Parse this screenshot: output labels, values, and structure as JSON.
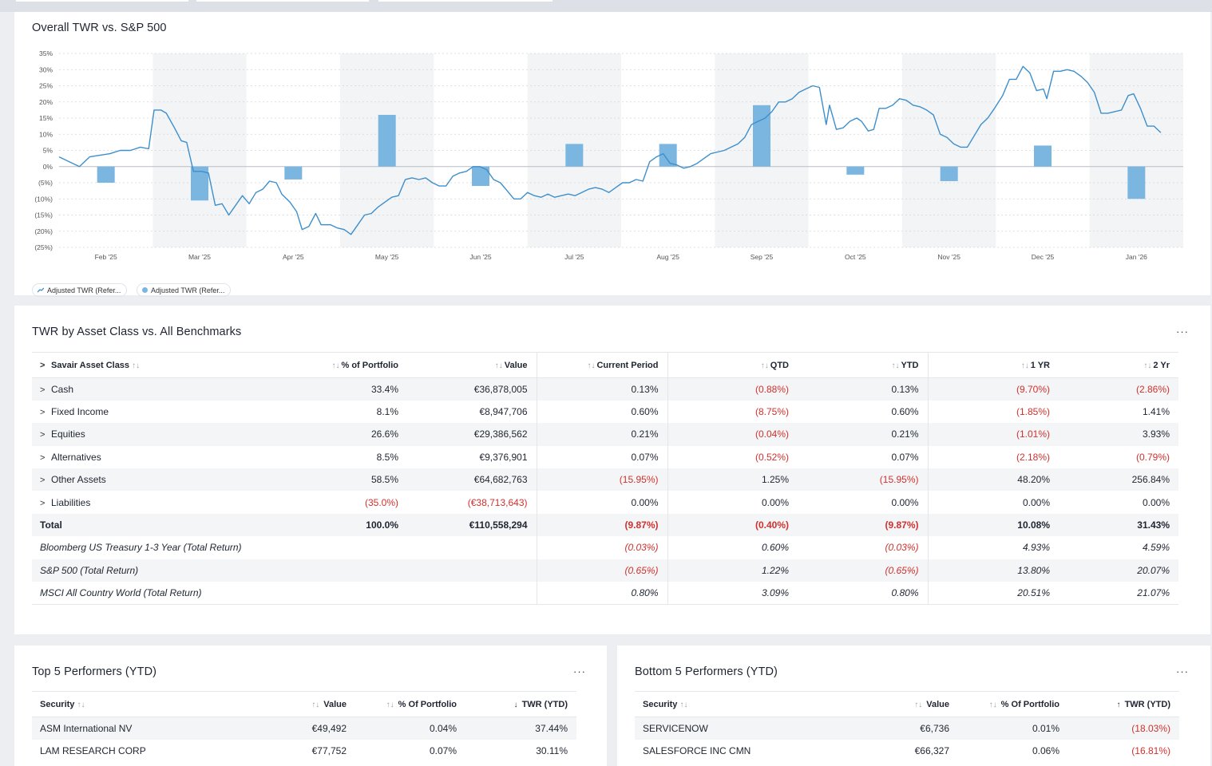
{
  "chart_card": {
    "title": "Overall TWR vs. S&P 500",
    "legend": [
      {
        "label": "Adjusted TWR (Refer...",
        "kind": "line"
      },
      {
        "label": "Adjusted TWR (Refer...",
        "kind": "bar"
      }
    ]
  },
  "chart_data": {
    "type": "line+bar",
    "title": "Overall TWR vs. S&P 500",
    "ylim": [
      -25,
      35
    ],
    "y_ticks": [
      "35%",
      "30%",
      "25%",
      "20%",
      "15%",
      "10%",
      "5%",
      "0%",
      "(5%)",
      "(10%)",
      "(15%)",
      "(20%)",
      "(25%)"
    ],
    "x_labels": [
      "Feb '25",
      "Mar '25",
      "Apr '25",
      "May '25",
      "Jun '25",
      "Jul '25",
      "Aug '25",
      "Sep '25",
      "Oct '25",
      "Nov '25",
      "Dec '25",
      "Jan '26"
    ],
    "bar_series": {
      "name": "Adjusted TWR (Refer...)",
      "color": "#7ab6e0",
      "values": [
        -5,
        -10.5,
        -4,
        16,
        -6,
        7,
        7,
        19,
        -2.5,
        -4.5,
        6.5,
        -10
      ]
    },
    "line_series": {
      "name": "Adjusted TWR (Refer...)",
      "color": "#3d8fcb",
      "points": [
        [
          0.0,
          3
        ],
        [
          0.15,
          1.5
        ],
        [
          0.3,
          0
        ],
        [
          0.45,
          3
        ],
        [
          0.6,
          3.5
        ],
        [
          0.75,
          4
        ],
        [
          0.9,
          5
        ],
        [
          1.05,
          5
        ],
        [
          1.2,
          6
        ],
        [
          1.32,
          5.5
        ],
        [
          1.4,
          17.5
        ],
        [
          1.5,
          17.5
        ],
        [
          1.58,
          16.5
        ],
        [
          1.7,
          12
        ],
        [
          1.8,
          8
        ],
        [
          1.88,
          7.5
        ],
        [
          1.98,
          -1.5
        ],
        [
          2.1,
          -1.5
        ],
        [
          2.2,
          -2
        ],
        [
          2.3,
          -12
        ],
        [
          2.4,
          -11.5
        ],
        [
          2.5,
          -15
        ],
        [
          2.6,
          -12
        ],
        [
          2.7,
          -9
        ],
        [
          2.8,
          -11.5
        ],
        [
          2.9,
          -8
        ],
        [
          3.0,
          -7
        ],
        [
          3.1,
          -4.5
        ],
        [
          3.2,
          -5
        ],
        [
          3.28,
          -8.5
        ],
        [
          3.4,
          -11
        ],
        [
          3.5,
          -14
        ],
        [
          3.58,
          -19.5
        ],
        [
          3.68,
          -18.5
        ],
        [
          3.78,
          -14.5
        ],
        [
          3.86,
          -18
        ],
        [
          4.0,
          -18
        ],
        [
          4.1,
          -19
        ],
        [
          4.2,
          -19.5
        ],
        [
          4.3,
          -21
        ],
        [
          4.4,
          -18
        ],
        [
          4.5,
          -15
        ],
        [
          4.6,
          -14.5
        ],
        [
          4.7,
          -12.5
        ],
        [
          4.8,
          -11
        ],
        [
          4.9,
          -9.5
        ],
        [
          5.0,
          -9
        ],
        [
          5.1,
          -4
        ],
        [
          5.2,
          -3.5
        ],
        [
          5.3,
          -4
        ],
        [
          5.4,
          -3.5
        ],
        [
          5.5,
          -5
        ],
        [
          5.6,
          -6
        ],
        [
          5.7,
          -6
        ],
        [
          5.8,
          -3
        ],
        [
          5.9,
          -2
        ],
        [
          6.0,
          -1.5
        ],
        [
          6.1,
          0
        ],
        [
          6.2,
          0
        ],
        [
          6.3,
          -1
        ],
        [
          6.4,
          -4
        ],
        [
          6.5,
          -5
        ],
        [
          6.6,
          -7.5
        ],
        [
          6.7,
          -10
        ],
        [
          6.8,
          -10
        ],
        [
          6.9,
          -8
        ],
        [
          7.0,
          -9
        ],
        [
          7.1,
          -9.5
        ],
        [
          7.2,
          -8.5
        ],
        [
          7.3,
          -9.5
        ],
        [
          7.4,
          -9
        ],
        [
          7.5,
          -8.5
        ],
        [
          7.6,
          -9
        ],
        [
          7.7,
          -8
        ],
        [
          7.8,
          -7
        ],
        [
          7.9,
          -6.5
        ],
        [
          8.0,
          -7
        ],
        [
          8.1,
          -8
        ],
        [
          8.2,
          -6.5
        ],
        [
          8.3,
          -5
        ],
        [
          8.4,
          -5
        ],
        [
          8.5,
          -4
        ],
        [
          8.6,
          -4.5
        ],
        [
          8.7,
          1.5
        ],
        [
          8.8,
          3
        ],
        [
          8.9,
          4
        ],
        [
          9.0,
          1
        ],
        [
          9.1,
          0.5
        ],
        [
          9.2,
          -0.5
        ],
        [
          9.3,
          0
        ],
        [
          9.4,
          1
        ],
        [
          9.5,
          2.5
        ],
        [
          9.6,
          4
        ],
        [
          9.7,
          4.5
        ],
        [
          9.8,
          5
        ],
        [
          9.9,
          6
        ],
        [
          10.0,
          7
        ],
        [
          10.1,
          9
        ],
        [
          10.2,
          13
        ],
        [
          10.3,
          14
        ],
        [
          10.4,
          15
        ],
        [
          10.5,
          17
        ],
        [
          10.6,
          20
        ],
        [
          10.7,
          20
        ],
        [
          10.8,
          21
        ],
        [
          10.9,
          23
        ],
        [
          11.0,
          24
        ],
        [
          11.1,
          25
        ],
        [
          11.2,
          24.5
        ],
        [
          11.3,
          13
        ],
        [
          11.35,
          19
        ],
        [
          11.45,
          11.5
        ],
        [
          11.55,
          12
        ],
        [
          11.65,
          14
        ],
        [
          11.75,
          15
        ],
        [
          11.82,
          14
        ],
        [
          11.92,
          11
        ],
        [
          12.0,
          11.5
        ],
        [
          12.08,
          18
        ],
        [
          12.18,
          18
        ],
        [
          12.28,
          19
        ],
        [
          12.38,
          21
        ],
        [
          12.48,
          20.5
        ],
        [
          12.58,
          19
        ],
        [
          12.68,
          18.5
        ],
        [
          12.78,
          17.5
        ],
        [
          12.88,
          16
        ],
        [
          12.98,
          10
        ],
        [
          13.08,
          9
        ],
        [
          13.18,
          7
        ],
        [
          13.28,
          6
        ],
        [
          13.38,
          6
        ],
        [
          13.48,
          9.5
        ],
        [
          13.58,
          13
        ],
        [
          13.68,
          15
        ],
        [
          13.78,
          18
        ],
        [
          13.9,
          22
        ],
        [
          14.0,
          27
        ],
        [
          14.1,
          27
        ],
        [
          14.2,
          31
        ],
        [
          14.3,
          29
        ],
        [
          14.4,
          23.5
        ],
        [
          14.5,
          24
        ],
        [
          14.55,
          21
        ],
        [
          14.65,
          29.5
        ],
        [
          14.75,
          29.5
        ],
        [
          14.85,
          30
        ],
        [
          14.95,
          29.5
        ],
        [
          15.05,
          28
        ],
        [
          15.15,
          26
        ],
        [
          15.25,
          23
        ],
        [
          15.35,
          16.5
        ],
        [
          15.45,
          16.5
        ],
        [
          15.55,
          17
        ],
        [
          15.65,
          17.5
        ],
        [
          15.75,
          22
        ],
        [
          15.83,
          22.5
        ],
        [
          15.93,
          18
        ],
        [
          16.03,
          12.5
        ],
        [
          16.13,
          12.5
        ],
        [
          16.23,
          10.5
        ]
      ]
    }
  },
  "asset_card": {
    "title": "TWR by Asset Class vs. All Benchmarks",
    "more": "···",
    "headers": [
      "Savair Asset Class",
      "% of Portfolio",
      "Value",
      "Current Period",
      "QTD",
      "YTD",
      "1 YR",
      "2 Yr"
    ],
    "rows": [
      {
        "name": "Cash",
        "pct": "33.4%",
        "value": "€36,878,005",
        "cur": "0.13%",
        "qtd": "(0.88%)",
        "ytd": "0.13%",
        "yr1": "(9.70%)",
        "yr2": "(2.86%)"
      },
      {
        "name": "Fixed Income",
        "pct": "8.1%",
        "value": "€8,947,706",
        "cur": "0.60%",
        "qtd": "(8.75%)",
        "ytd": "0.60%",
        "yr1": "(1.85%)",
        "yr2": "1.41%"
      },
      {
        "name": "Equities",
        "pct": "26.6%",
        "value": "€29,386,562",
        "cur": "0.21%",
        "qtd": "(0.04%)",
        "ytd": "0.21%",
        "yr1": "(1.01%)",
        "yr2": "3.93%"
      },
      {
        "name": "Alternatives",
        "pct": "8.5%",
        "value": "€9,376,901",
        "cur": "0.07%",
        "qtd": "(0.52%)",
        "ytd": "0.07%",
        "yr1": "(2.18%)",
        "yr2": "(0.79%)"
      },
      {
        "name": "Other Assets",
        "pct": "58.5%",
        "value": "€64,682,763",
        "cur": "(15.95%)",
        "qtd": "1.25%",
        "ytd": "(15.95%)",
        "yr1": "48.20%",
        "yr2": "256.84%"
      },
      {
        "name": "Liabilities",
        "pct": "(35.0%)",
        "value": "(€38,713,643)",
        "cur": "0.00%",
        "qtd": "0.00%",
        "ytd": "0.00%",
        "yr1": "0.00%",
        "yr2": "0.00%"
      }
    ],
    "total": {
      "name": "Total",
      "pct": "100.0%",
      "value": "€110,558,294",
      "cur": "(9.87%)",
      "qtd": "(0.40%)",
      "ytd": "(9.87%)",
      "yr1": "10.08%",
      "yr2": "31.43%"
    },
    "benchmarks": [
      {
        "name": "Bloomberg US Treasury 1-3 Year (Total Return)",
        "cur": "(0.03%)",
        "qtd": "0.60%",
        "ytd": "(0.03%)",
        "yr1": "4.93%",
        "yr2": "4.59%"
      },
      {
        "name": "S&P 500 (Total Return)",
        "cur": "(0.65%)",
        "qtd": "1.22%",
        "ytd": "(0.65%)",
        "yr1": "13.80%",
        "yr2": "20.07%"
      },
      {
        "name": "MSCI All Country World (Total Return)",
        "cur": "0.80%",
        "qtd": "3.09%",
        "ytd": "0.80%",
        "yr1": "20.51%",
        "yr2": "21.07%"
      }
    ]
  },
  "top_card": {
    "title": "Top 5 Performers (YTD)",
    "more": "···",
    "headers": [
      "Security",
      "Value",
      "% Of Portfolio",
      "TWR (YTD)"
    ],
    "twr_sort": "↓",
    "rows": [
      {
        "name": "ASM International NV",
        "value": "€49,492",
        "pct": "0.04%",
        "twr": "37.44%"
      },
      {
        "name": "LAM RESEARCH CORP",
        "value": "€77,752",
        "pct": "0.07%",
        "twr": "30.11%"
      }
    ]
  },
  "bottom_card": {
    "title": "Bottom 5 Performers (YTD)",
    "more": "···",
    "headers": [
      "Security",
      "Value",
      "% Of Portfolio",
      "TWR (YTD)"
    ],
    "twr_sort": "↑",
    "rows": [
      {
        "name": "SERVICENOW",
        "value": "€6,736",
        "pct": "0.01%",
        "twr": "(18.03%)"
      },
      {
        "name": "SALESFORCE INC CMN",
        "value": "€66,327",
        "pct": "0.06%",
        "twr": "(16.81%)"
      }
    ]
  }
}
